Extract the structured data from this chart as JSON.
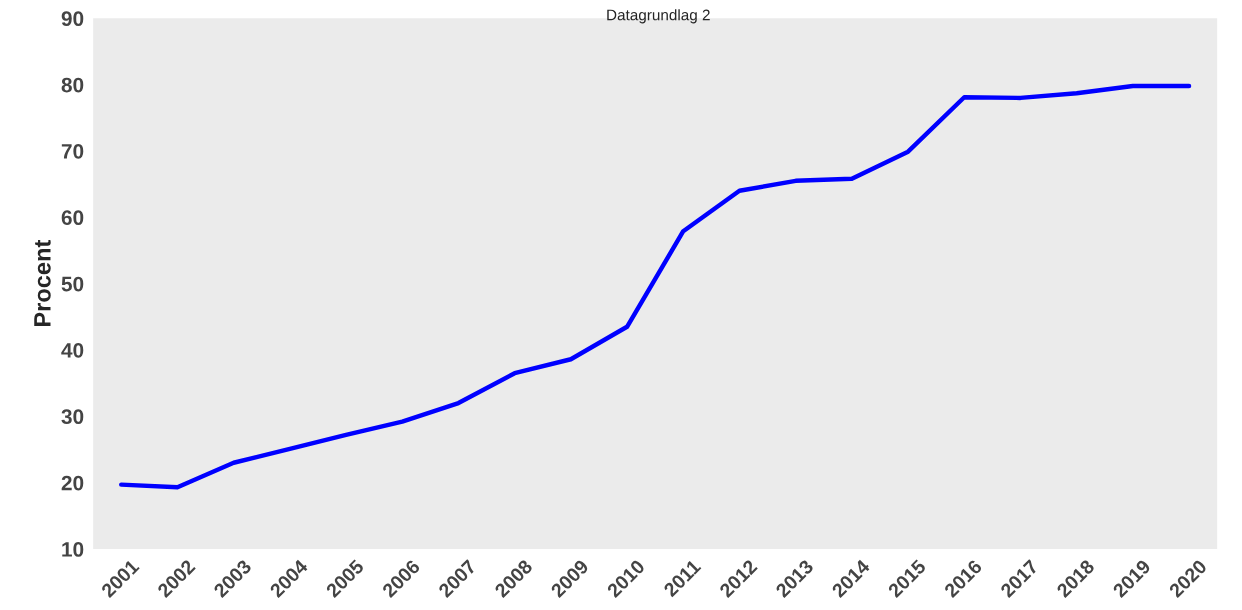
{
  "chart_data": {
    "type": "line",
    "title": "Datagrundlag 2",
    "ylabel": "Procent",
    "categories": [
      "2001",
      "2002",
      "2003",
      "2004",
      "2005",
      "2006",
      "2007",
      "2008",
      "2009",
      "2010",
      "2011",
      "2012",
      "2013",
      "2014",
      "2015",
      "2016",
      "2017",
      "2018",
      "2019",
      "2020"
    ],
    "series": [
      {
        "color": "#0000ff",
        "values": [
          19.7,
          19.3,
          23.0,
          25.1,
          27.2,
          29.2,
          32.0,
          36.5,
          38.6,
          43.5,
          57.9,
          64.0,
          65.5,
          65.8,
          69.9,
          78.1,
          78.0,
          78.7,
          79.8,
          79.8
        ]
      }
    ],
    "ylim": [
      10,
      90
    ],
    "yticks": [
      10,
      20,
      30,
      40,
      50,
      60,
      70,
      80,
      90
    ],
    "grid": false,
    "marker": "none",
    "line_style": "solid"
  }
}
